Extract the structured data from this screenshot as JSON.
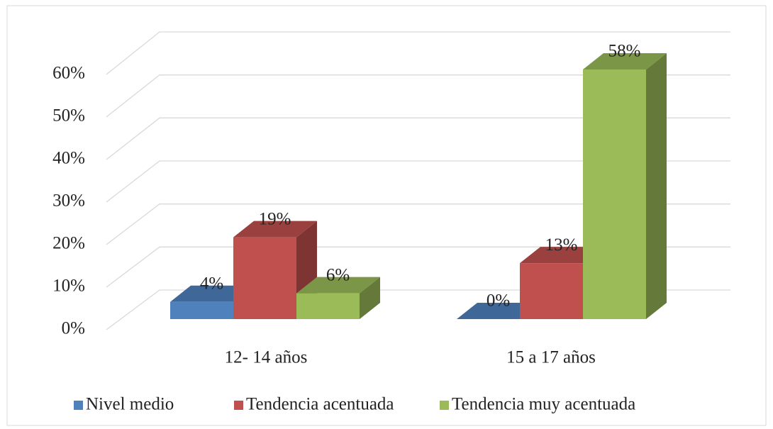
{
  "chart_data": {
    "type": "bar3d",
    "categories": [
      "12- 14 años",
      "15 a 17 años"
    ],
    "series": [
      {
        "name": "Nivel medio",
        "color": "#4f81bd",
        "values": [
          4,
          0
        ],
        "value_labels": [
          "4%",
          "0%"
        ]
      },
      {
        "name": "Tendencia acentuada",
        "color": "#c0504d",
        "values": [
          19,
          13
        ],
        "value_labels": [
          "19%",
          "13%"
        ]
      },
      {
        "name": "Tendencia muy acentuada",
        "color": "#9bbb59",
        "values": [
          6,
          58
        ],
        "value_labels": [
          "6%",
          "58%"
        ]
      }
    ],
    "ylim": [
      0,
      60
    ],
    "yticks": [
      {
        "value": 0,
        "label": "0%"
      },
      {
        "value": 10,
        "label": "10%"
      },
      {
        "value": 20,
        "label": "20%"
      },
      {
        "value": 30,
        "label": "30%"
      },
      {
        "value": 40,
        "label": "40%"
      },
      {
        "value": 50,
        "label": "50%"
      },
      {
        "value": 60,
        "label": "60%"
      }
    ],
    "grid": true,
    "legend": "bottom"
  }
}
